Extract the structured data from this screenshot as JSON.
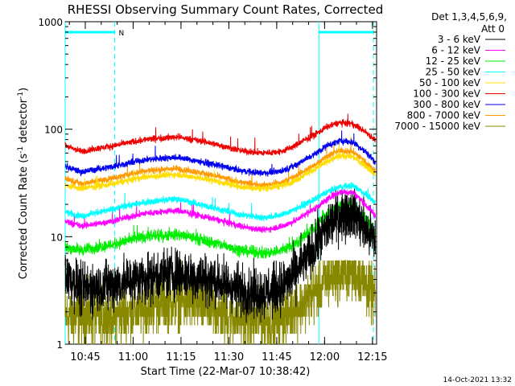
{
  "chart_data": {
    "type": "line",
    "title": "RHESSI Observing Summary Count Rates, Corrected",
    "xlabel": "Start Time (22-Mar-07 10:38:42)",
    "ylabel_main": "Corrected Count Rate (s",
    "ylabel_sup1": "-1",
    "ylabel_mid": " detector",
    "ylabel_sup2": "-1",
    "ylabel_end": ")",
    "y_scale": "log",
    "ylim": [
      1,
      1000
    ],
    "y_ticks": [
      {
        "value": 1,
        "label": "1"
      },
      {
        "value": 10,
        "label": "10"
      },
      {
        "value": 100,
        "label": "100"
      },
      {
        "value": 1000,
        "label": "1000"
      }
    ],
    "x_unit": "minutes after 10:38:42",
    "xlim": [
      0,
      97.6
    ],
    "x_ticks": [
      {
        "value": 6.3,
        "label": "10:45"
      },
      {
        "value": 21.3,
        "label": "11:00"
      },
      {
        "value": 36.3,
        "label": "11:15"
      },
      {
        "value": 51.3,
        "label": "11:30"
      },
      {
        "value": 66.3,
        "label": "11:45"
      },
      {
        "value": 81.3,
        "label": "12:00"
      },
      {
        "value": 96.3,
        "label": "12:15"
      }
    ],
    "legend_header": [
      "Det 1,3,4,5,6,9,",
      "Att 0"
    ],
    "legend_position": "right",
    "series": [
      {
        "name": "3 - 6 keV",
        "color": "#000000",
        "x": [
          0,
          5,
          15,
          25,
          35,
          45,
          55,
          62,
          68,
          72,
          78,
          82,
          86,
          90,
          94,
          97
        ],
        "y": [
          4.5,
          3.2,
          3.6,
          4.2,
          4.6,
          4.0,
          3.2,
          3.0,
          3.4,
          4.5,
          7.5,
          12,
          16,
          17,
          12,
          9
        ]
      },
      {
        "name": "6 - 12 keV",
        "color": "#ff00ff",
        "x": [
          0,
          5,
          15,
          25,
          35,
          45,
          55,
          62,
          68,
          72,
          78,
          82,
          86,
          90,
          94,
          97
        ],
        "y": [
          14,
          12.5,
          14,
          16.5,
          17.5,
          15,
          12.5,
          11.5,
          12.5,
          14,
          18,
          22,
          26,
          26,
          20,
          16
        ]
      },
      {
        "name": "12 - 25 keV",
        "color": "#00ee00",
        "x": [
          0,
          5,
          15,
          25,
          35,
          45,
          55,
          62,
          68,
          72,
          78,
          82,
          86,
          90,
          94,
          97
        ],
        "y": [
          8,
          7.5,
          8.5,
          10,
          10.5,
          9,
          7.5,
          7.0,
          7.5,
          8.5,
          12,
          16,
          19,
          20,
          15,
          11
        ]
      },
      {
        "name": "25 - 50 keV",
        "color": "#00ffff",
        "x": [
          0,
          5,
          15,
          25,
          35,
          45,
          55,
          62,
          68,
          72,
          78,
          82,
          86,
          90,
          94,
          97
        ],
        "y": [
          17,
          15.5,
          18,
          21,
          22.5,
          19,
          16,
          15,
          16,
          18,
          22,
          26,
          29,
          30,
          25,
          21
        ]
      },
      {
        "name": "50 - 100 keV",
        "color": "#ffdd00",
        "x": [
          0,
          5,
          15,
          25,
          35,
          45,
          55,
          62,
          68,
          72,
          78,
          82,
          86,
          90,
          94,
          97
        ],
        "y": [
          30,
          28,
          31,
          36,
          38,
          34,
          29,
          28,
          30,
          33,
          42,
          50,
          56,
          56,
          46,
          38
        ]
      },
      {
        "name": "100 - 300 keV",
        "color": "#ee0000",
        "x": [
          0,
          5,
          15,
          25,
          35,
          45,
          55,
          62,
          68,
          72,
          78,
          82,
          86,
          90,
          94,
          97
        ],
        "y": [
          70,
          62,
          70,
          80,
          85,
          75,
          63,
          60,
          62,
          70,
          88,
          105,
          115,
          112,
          95,
          80
        ]
      },
      {
        "name": "300 - 800 keV",
        "color": "#0000ee",
        "x": [
          0,
          5,
          15,
          25,
          35,
          45,
          55,
          62,
          68,
          72,
          78,
          82,
          86,
          90,
          94,
          97
        ],
        "y": [
          45,
          40,
          45,
          52,
          55,
          48,
          41,
          39,
          41,
          46,
          58,
          70,
          78,
          76,
          62,
          50
        ]
      },
      {
        "name": "800 - 7000 keV",
        "color": "#ff9900",
        "x": [
          0,
          5,
          15,
          25,
          35,
          45,
          55,
          62,
          68,
          72,
          78,
          82,
          86,
          90,
          94,
          97
        ],
        "y": [
          35,
          31,
          35,
          41,
          43,
          38,
          32,
          30,
          32,
          36,
          46,
          56,
          63,
          62,
          50,
          41
        ]
      },
      {
        "name": "7000 - 15000 keV",
        "color": "#888800",
        "x": [
          0,
          5,
          10,
          16,
          20,
          25,
          30,
          36,
          42,
          48,
          55,
          62,
          68,
          75,
          80,
          84,
          88,
          92,
          95,
          97
        ],
        "y": [
          1.8,
          1.8,
          1.8,
          1.8,
          2.0,
          2.2,
          2.5,
          2.6,
          2.4,
          2.0,
          1.7,
          1.6,
          1.8,
          2.4,
          3.4,
          4.4,
          4.8,
          4.4,
          3.4,
          2.8
        ]
      }
    ],
    "night_markers": [
      0,
      15.5,
      79.5,
      96.6
    ],
    "bar_segments": [
      [
        0,
        15.5
      ],
      [
        79.5,
        96.6
      ]
    ],
    "bar_label": "N",
    "bar_level": 800
  },
  "footer": {
    "timestamp": "14-Oct-2021 13:32"
  }
}
